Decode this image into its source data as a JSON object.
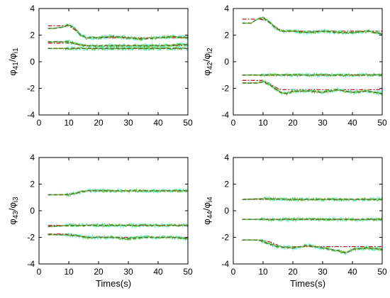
{
  "chart_data": [
    {
      "type": "line",
      "ylabel": {
        "main": "φ",
        "sub1": "41",
        "sep": "/φ",
        "sub2": "i1"
      },
      "xlabel": "",
      "xlim": [
        0,
        50
      ],
      "ylim": [
        -4,
        4
      ],
      "xticks": [
        0,
        10,
        20,
        30,
        40,
        50
      ],
      "yticks": [
        -4,
        -2,
        0,
        2,
        4
      ],
      "series": [
        {
          "kind": "reference",
          "x": [
            3,
            10,
            12,
            14,
            16,
            50
          ],
          "values": [
            2.7,
            2.7,
            2.4,
            2.0,
            1.8,
            1.8
          ]
        },
        {
          "kind": "estimate",
          "x": [
            3,
            5,
            8,
            10,
            12,
            14,
            16,
            20,
            25,
            30,
            35,
            40,
            45,
            50
          ],
          "values": [
            2.5,
            2.5,
            2.6,
            2.8,
            2.5,
            2.0,
            1.8,
            1.8,
            1.9,
            1.8,
            1.7,
            1.8,
            1.9,
            1.8
          ]
        },
        {
          "kind": "reference",
          "x": [
            3,
            10,
            13,
            16,
            50
          ],
          "values": [
            1.4,
            1.4,
            1.3,
            1.2,
            1.2
          ]
        },
        {
          "kind": "estimate",
          "x": [
            3,
            10,
            13,
            16,
            20,
            30,
            40,
            50
          ],
          "values": [
            1.5,
            1.5,
            1.3,
            1.2,
            1.2,
            1.2,
            1.2,
            1.3
          ]
        },
        {
          "kind": "reference",
          "x": [
            3,
            50
          ],
          "values": [
            1.0,
            1.0
          ]
        },
        {
          "kind": "estimate",
          "x": [
            3,
            10,
            20,
            30,
            40,
            45,
            50
          ],
          "values": [
            1.0,
            1.0,
            1.0,
            1.0,
            1.0,
            1.0,
            1.0
          ]
        }
      ]
    },
    {
      "type": "line",
      "ylabel": {
        "main": "φ",
        "sub1": "42",
        "sep": "/φ",
        "sub2": "i2"
      },
      "xlabel": "",
      "xlim": [
        0,
        50
      ],
      "ylim": [
        -4,
        4
      ],
      "xticks": [
        0,
        10,
        20,
        30,
        40,
        50
      ],
      "yticks": [
        -4,
        -2,
        0,
        2,
        4
      ],
      "series": [
        {
          "kind": "reference",
          "x": [
            3,
            9,
            11,
            13,
            15,
            17,
            50
          ],
          "values": [
            3.2,
            3.2,
            3.1,
            2.8,
            2.5,
            2.3,
            2.3
          ]
        },
        {
          "kind": "estimate",
          "x": [
            3,
            6,
            8,
            10,
            12,
            14,
            16,
            20,
            25,
            30,
            35,
            40,
            45,
            50
          ],
          "values": [
            2.9,
            2.9,
            3.2,
            3.3,
            3.0,
            2.6,
            2.3,
            2.3,
            2.2,
            2.3,
            2.2,
            2.2,
            2.3,
            2.1
          ]
        },
        {
          "kind": "reference",
          "x": [
            3,
            50
          ],
          "values": [
            -1.0,
            -1.0
          ]
        },
        {
          "kind": "estimate",
          "x": [
            3,
            10,
            20,
            30,
            40,
            50
          ],
          "values": [
            -1.0,
            -1.0,
            -1.0,
            -1.0,
            -1.0,
            -1.0
          ]
        },
        {
          "kind": "reference",
          "x": [
            3,
            10,
            12,
            14,
            16,
            50
          ],
          "values": [
            -1.4,
            -1.4,
            -1.6,
            -1.9,
            -2.1,
            -2.1
          ]
        },
        {
          "kind": "estimate",
          "x": [
            3,
            8,
            10,
            12,
            14,
            16,
            18,
            20,
            25,
            30,
            35,
            40,
            45,
            50
          ],
          "values": [
            -1.6,
            -1.6,
            -1.5,
            -1.7,
            -2.0,
            -2.3,
            -2.4,
            -2.2,
            -2.2,
            -2.3,
            -2.1,
            -2.3,
            -2.2,
            -2.4
          ]
        }
      ]
    },
    {
      "type": "line",
      "ylabel": {
        "main": "φ",
        "sub1": "43",
        "sep": "/φ",
        "sub2": "i3"
      },
      "xlabel": "Times(s)",
      "xlim": [
        0,
        50
      ],
      "ylim": [
        -4,
        4
      ],
      "xticks": [
        0,
        10,
        20,
        30,
        40,
        50
      ],
      "yticks": [
        -4,
        -2,
        0,
        2,
        4
      ],
      "series": [
        {
          "kind": "reference",
          "x": [
            3,
            10,
            13,
            16,
            50
          ],
          "values": [
            1.2,
            1.2,
            1.35,
            1.5,
            1.5
          ]
        },
        {
          "kind": "estimate",
          "x": [
            3,
            10,
            13,
            16,
            20,
            30,
            40,
            50
          ],
          "values": [
            1.2,
            1.2,
            1.35,
            1.5,
            1.5,
            1.5,
            1.5,
            1.5
          ]
        },
        {
          "kind": "reference",
          "x": [
            3,
            50
          ],
          "values": [
            -1.1,
            -1.1
          ]
        },
        {
          "kind": "estimate",
          "x": [
            3,
            10,
            20,
            30,
            40,
            50
          ],
          "values": [
            -1.2,
            -1.1,
            -1.1,
            -1.1,
            -1.1,
            -1.1
          ]
        },
        {
          "kind": "reference",
          "x": [
            3,
            10,
            13,
            16,
            50
          ],
          "values": [
            -1.75,
            -1.75,
            -1.85,
            -2.0,
            -2.0
          ]
        },
        {
          "kind": "estimate",
          "x": [
            3,
            10,
            13,
            16,
            20,
            25,
            30,
            35,
            40,
            45,
            50
          ],
          "values": [
            -1.8,
            -1.8,
            -1.9,
            -2.0,
            -2.0,
            -2.0,
            -2.1,
            -2.0,
            -2.0,
            -2.0,
            -2.1
          ]
        }
      ]
    },
    {
      "type": "line",
      "ylabel": {
        "main": "φ",
        "sub1": "44",
        "sep": "/φ",
        "sub2": "i4"
      },
      "xlabel": "Times(s)",
      "xlim": [
        0,
        50
      ],
      "ylim": [
        -4,
        4
      ],
      "xticks": [
        0,
        10,
        20,
        30,
        40,
        50
      ],
      "yticks": [
        -4,
        -2,
        0,
        2,
        4
      ],
      "series": [
        {
          "kind": "reference",
          "x": [
            3,
            50
          ],
          "values": [
            0.85,
            0.85
          ]
        },
        {
          "kind": "estimate",
          "x": [
            3,
            10,
            20,
            30,
            40,
            50
          ],
          "values": [
            0.85,
            0.9,
            0.85,
            0.85,
            0.85,
            0.85
          ]
        },
        {
          "kind": "reference",
          "x": [
            3,
            50
          ],
          "values": [
            -0.65,
            -0.65
          ]
        },
        {
          "kind": "estimate",
          "x": [
            3,
            10,
            20,
            30,
            40,
            50
          ],
          "values": [
            -0.65,
            -0.65,
            -0.65,
            -0.65,
            -0.65,
            -0.65
          ]
        },
        {
          "kind": "reference",
          "x": [
            3,
            10,
            13,
            16,
            50
          ],
          "values": [
            -2.2,
            -2.2,
            -2.4,
            -2.7,
            -2.7
          ]
        },
        {
          "kind": "estimate",
          "x": [
            3,
            8,
            10,
            12,
            15,
            20,
            25,
            30,
            35,
            38,
            40,
            45,
            50
          ],
          "values": [
            -2.2,
            -2.2,
            -2.3,
            -2.5,
            -2.7,
            -2.8,
            -2.6,
            -2.8,
            -3.0,
            -3.2,
            -2.9,
            -2.8,
            -2.9
          ]
        }
      ]
    }
  ],
  "colors": {
    "reference": "#b22222",
    "estimate": "#6cc43a",
    "noise": "#66f0d0",
    "fit": "#666633"
  }
}
